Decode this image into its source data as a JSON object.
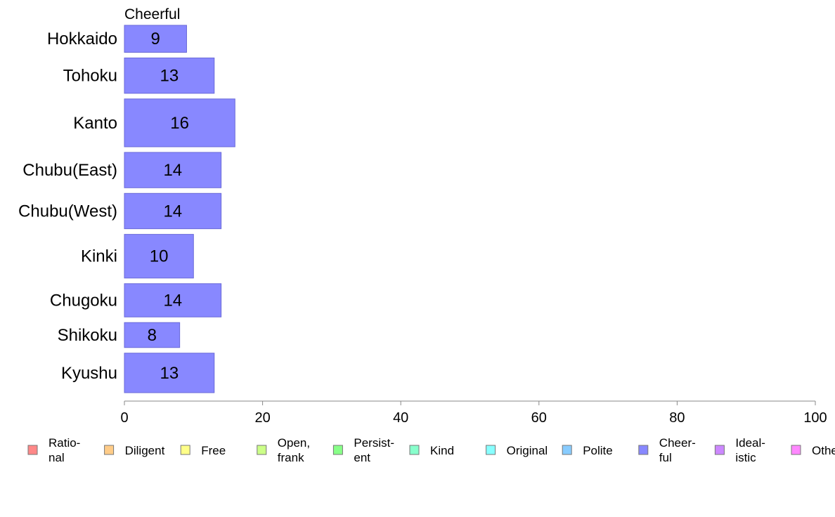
{
  "chart_data": {
    "type": "bar",
    "orientation": "horizontal",
    "series_title": "Cheerful",
    "categories": [
      "Hokkaido",
      "Tohoku",
      "Kanto",
      "Chubu(East)",
      "Chubu(West)",
      "Kinki",
      "Chugoku",
      "Shikoku",
      "Kyushu"
    ],
    "values": [
      9,
      13,
      16,
      14,
      14,
      10,
      14,
      8,
      13
    ],
    "value_labels": [
      "9",
      "13",
      "16",
      "14",
      "14",
      "10",
      "14",
      "8",
      "13"
    ],
    "bar_weights": [
      13,
      17,
      23,
      17,
      17,
      21,
      16,
      12,
      19
    ],
    "xlim": [
      0,
      100
    ],
    "x_ticks": [
      "0",
      "20",
      "40",
      "60",
      "80",
      "100"
    ],
    "xlabel": "",
    "ylabel": "",
    "grid": false,
    "bar_color": "#8888ff",
    "bar_edge_color": "#6a6ad8",
    "legend": {
      "position": "bottom",
      "items": [
        {
          "label": [
            "Ratio-",
            "nal"
          ],
          "color": "#ff8888"
        },
        {
          "label": [
            "Diligent"
          ],
          "color": "#ffcc88"
        },
        {
          "label": [
            "Free"
          ],
          "color": "#ffff88"
        },
        {
          "label": [
            "Open,",
            "frank"
          ],
          "color": "#ccff88"
        },
        {
          "label": [
            "Persist-",
            "ent"
          ],
          "color": "#88ff88"
        },
        {
          "label": [
            "Kind"
          ],
          "color": "#88ffcc"
        },
        {
          "label": [
            "Original"
          ],
          "color": "#88ffff"
        },
        {
          "label": [
            "Polite"
          ],
          "color": "#88ccff"
        },
        {
          "label": [
            "Cheer-",
            "ful"
          ],
          "color": "#8888ff"
        },
        {
          "label": [
            "Ideal-",
            "istic"
          ],
          "color": "#cc88ff"
        },
        {
          "label": [
            "Others"
          ],
          "color": "#ff88ff"
        }
      ]
    }
  }
}
